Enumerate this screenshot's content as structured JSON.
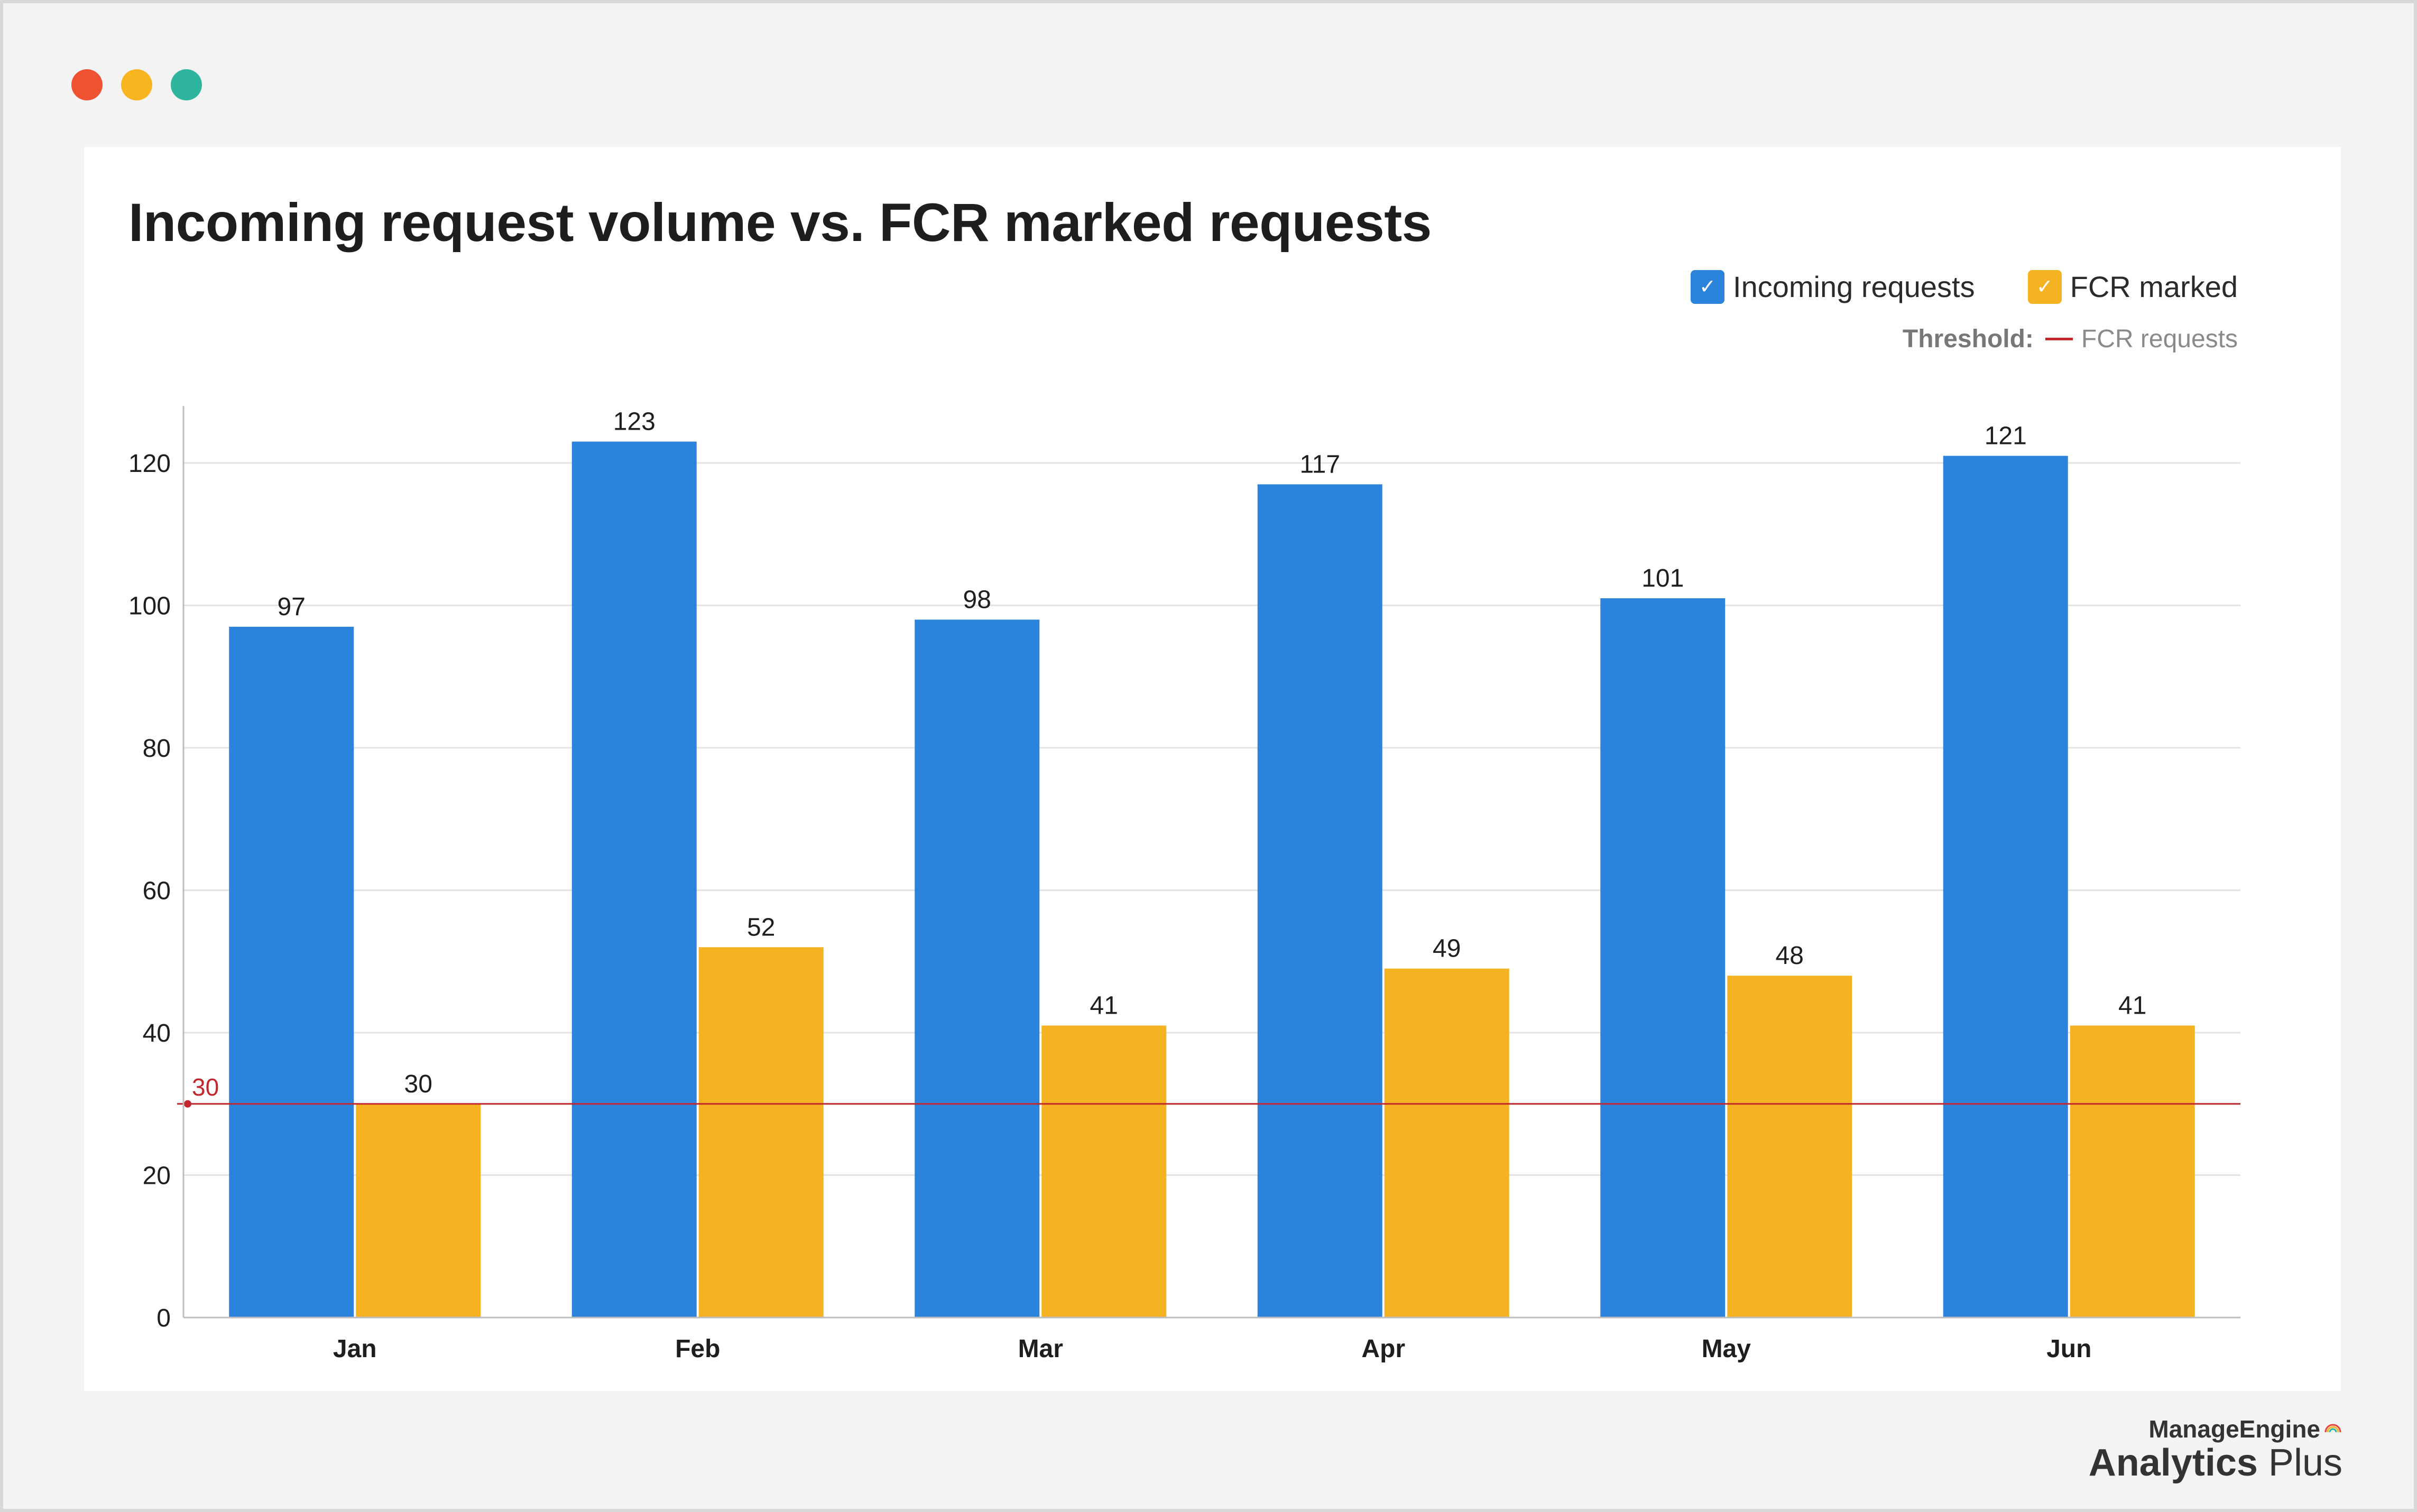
{
  "window": {
    "controls": [
      {
        "name": "close-dot",
        "color": "#ee5230"
      },
      {
        "name": "minimize-dot",
        "color": "#f8b51f"
      },
      {
        "name": "zoom-dot",
        "color": "#2fb49d"
      }
    ]
  },
  "chart_data": {
    "type": "bar",
    "title": "Incoming request volume vs. FCR marked requests",
    "xlabel": "",
    "ylabel": "",
    "categories": [
      "Jan",
      "Feb",
      "Mar",
      "Apr",
      "May",
      "Jun"
    ],
    "series": [
      {
        "name": "Incoming requests",
        "color": "#2c83db",
        "values": [
          97,
          123,
          98,
          117,
          101,
          121
        ]
      },
      {
        "name": "FCR marked",
        "color": "#f5b324",
        "values": [
          30,
          52,
          41,
          49,
          48,
          41
        ]
      }
    ],
    "ylim": [
      0,
      128
    ],
    "yticks": [
      0,
      20,
      40,
      60,
      80,
      100,
      120
    ],
    "grid": true,
    "legend": "top-right",
    "threshold": {
      "title": "Threshold:",
      "label": "FCR requests",
      "value": 30,
      "value_label": "30",
      "color": "#c0282d"
    }
  },
  "branding": {
    "top": "ManageEngine",
    "product": "Analytics",
    "suffix": " Plus"
  }
}
